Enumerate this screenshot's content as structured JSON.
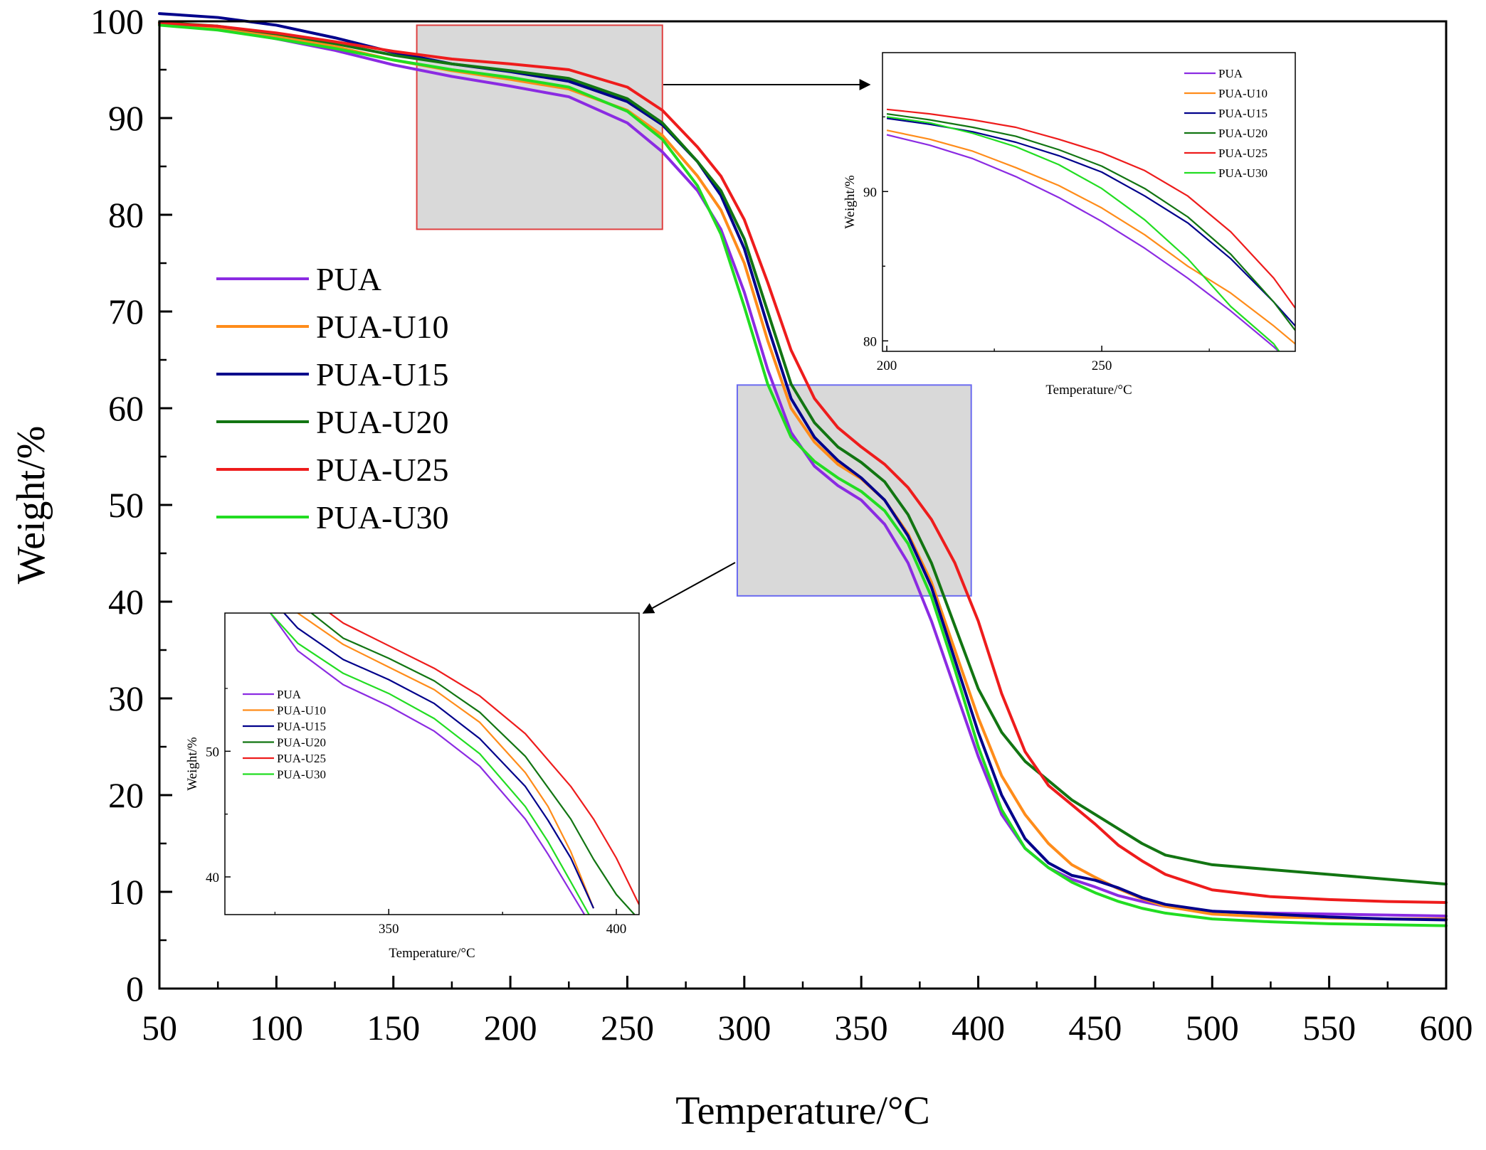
{
  "chart_data": [
    {
      "id": "main",
      "type": "line",
      "title": "",
      "xlabel": "Temperature/°C",
      "ylabel": "Weight/%",
      "xlim": [
        50,
        600
      ],
      "ylim": [
        0,
        100
      ],
      "xticks": [
        50,
        100,
        150,
        200,
        250,
        300,
        350,
        400,
        450,
        500,
        550,
        600
      ],
      "yticks": [
        0,
        10,
        20,
        30,
        40,
        50,
        60,
        70,
        80,
        90,
        100
      ],
      "legend_position": "left-center",
      "highlight_boxes": [
        {
          "x": [
            160,
            265
          ],
          "y": [
            78.5,
            99.6
          ],
          "color": "#e04040"
        },
        {
          "x": [
            297,
            397
          ],
          "y": [
            40.6,
            62.4
          ],
          "color": "#6a6af0"
        }
      ],
      "series": [
        {
          "name": "PUA",
          "color": "#8b2be2",
          "x": [
            50,
            75,
            100,
            125,
            150,
            175,
            200,
            225,
            250,
            265,
            280,
            290,
            300,
            310,
            320,
            330,
            340,
            350,
            360,
            370,
            380,
            390,
            400,
            410,
            420,
            430,
            440,
            450,
            460,
            470,
            480,
            500,
            525,
            550,
            575,
            600
          ],
          "y": [
            99.7,
            99.2,
            98.2,
            97.0,
            95.5,
            94.3,
            93.3,
            92.2,
            89.5,
            86.5,
            82.5,
            78.5,
            72.0,
            64.0,
            57.5,
            54.0,
            52.0,
            50.5,
            48.0,
            44.0,
            38.0,
            31.0,
            24.0,
            18.0,
            14.5,
            12.5,
            11.3,
            10.5,
            9.6,
            9.0,
            8.5,
            8.0,
            7.8,
            7.7,
            7.6,
            7.5
          ]
        },
        {
          "name": "PUA-U10",
          "color": "#ff8c1a",
          "x": [
            50,
            75,
            100,
            125,
            150,
            175,
            200,
            225,
            250,
            265,
            280,
            290,
            300,
            310,
            320,
            330,
            340,
            350,
            360,
            370,
            380,
            390,
            400,
            410,
            420,
            430,
            440,
            450,
            460,
            470,
            480,
            500,
            525,
            550,
            575,
            600
          ],
          "y": [
            99.8,
            99.4,
            98.5,
            97.4,
            96.0,
            94.9,
            94.0,
            93.0,
            90.8,
            88.2,
            84.0,
            80.5,
            75.0,
            67.0,
            60.0,
            56.5,
            54.2,
            52.7,
            50.5,
            47.0,
            42.0,
            35.0,
            28.0,
            22.0,
            18.0,
            15.0,
            12.8,
            11.5,
            10.3,
            9.3,
            8.5,
            7.7,
            7.4,
            7.3,
            7.2,
            7.2
          ]
        },
        {
          "name": "PUA-U15",
          "color": "#00008b",
          "x": [
            50,
            75,
            100,
            125,
            150,
            175,
            200,
            225,
            250,
            265,
            280,
            290,
            300,
            310,
            320,
            330,
            340,
            350,
            360,
            370,
            380,
            390,
            400,
            410,
            420,
            430,
            440,
            450,
            460,
            470,
            480,
            500,
            525,
            550,
            575,
            600
          ],
          "y": [
            100.8,
            100.4,
            99.6,
            98.3,
            96.8,
            95.6,
            94.8,
            93.8,
            91.7,
            89.3,
            85.5,
            82.0,
            76.5,
            68.5,
            61.0,
            57.0,
            54.6,
            52.8,
            50.5,
            46.8,
            41.5,
            34.0,
            26.5,
            20.0,
            15.5,
            13.0,
            11.7,
            11.2,
            10.4,
            9.4,
            8.7,
            8.0,
            7.7,
            7.4,
            7.2,
            7.1
          ]
        },
        {
          "name": "PUA-U20",
          "color": "#127512",
          "x": [
            50,
            75,
            100,
            125,
            150,
            175,
            200,
            225,
            250,
            265,
            280,
            290,
            300,
            310,
            320,
            330,
            340,
            350,
            360,
            370,
            380,
            390,
            400,
            410,
            420,
            430,
            440,
            450,
            460,
            470,
            480,
            500,
            525,
            550,
            575,
            600
          ],
          "y": [
            99.9,
            99.5,
            98.7,
            97.7,
            96.5,
            95.6,
            94.9,
            94.1,
            92.0,
            89.5,
            85.5,
            82.5,
            77.5,
            70.0,
            62.5,
            58.5,
            56.0,
            54.4,
            52.4,
            49.0,
            44.0,
            37.5,
            31.0,
            26.5,
            23.5,
            21.5,
            19.5,
            18.0,
            16.5,
            15.0,
            13.8,
            12.8,
            12.3,
            11.8,
            11.3,
            10.8
          ]
        },
        {
          "name": "PUA-U25",
          "color": "#ee1c1c",
          "x": [
            50,
            75,
            100,
            125,
            150,
            175,
            200,
            225,
            250,
            265,
            280,
            290,
            300,
            310,
            320,
            330,
            340,
            350,
            360,
            370,
            380,
            390,
            400,
            410,
            420,
            430,
            440,
            450,
            460,
            470,
            480,
            500,
            525,
            550,
            575,
            600
          ],
          "y": [
            99.8,
            99.5,
            98.8,
            97.9,
            96.9,
            96.1,
            95.6,
            95.0,
            93.2,
            90.8,
            87.0,
            84.0,
            79.5,
            73.0,
            66.0,
            61.0,
            58.0,
            56.0,
            54.2,
            51.8,
            48.5,
            44.0,
            38.0,
            30.5,
            24.5,
            21.0,
            19.0,
            17.0,
            14.8,
            13.2,
            11.8,
            10.2,
            9.5,
            9.2,
            9.0,
            8.9
          ]
        },
        {
          "name": "PUA-U30",
          "color": "#22dd22",
          "x": [
            50,
            75,
            100,
            125,
            150,
            175,
            200,
            225,
            250,
            265,
            280,
            290,
            300,
            310,
            320,
            330,
            340,
            350,
            360,
            370,
            380,
            390,
            400,
            410,
            420,
            430,
            440,
            450,
            460,
            470,
            480,
            500,
            525,
            550,
            575,
            600
          ],
          "y": [
            99.6,
            99.1,
            98.2,
            97.2,
            96.0,
            95.0,
            94.2,
            93.2,
            90.7,
            87.8,
            83.0,
            78.0,
            70.5,
            62.5,
            57.0,
            54.5,
            52.8,
            51.4,
            49.4,
            46.0,
            40.5,
            33.0,
            25.0,
            18.5,
            14.5,
            12.5,
            11.0,
            9.9,
            9.0,
            8.3,
            7.8,
            7.2,
            6.9,
            6.7,
            6.6,
            6.5
          ]
        }
      ]
    },
    {
      "id": "inset_top",
      "type": "line",
      "title": "",
      "xlabel": "Temperature/°C",
      "ylabel": "Weight/%",
      "xlim": [
        199,
        295
      ],
      "ylim": [
        79.3,
        99.3
      ],
      "xticks": [
        200,
        250
      ],
      "yticks": [
        80,
        90
      ],
      "legend_position": "top-right",
      "series": [
        {
          "name": "PUA",
          "color": "#8b2be2",
          "x": [
            200,
            210,
            220,
            230,
            240,
            250,
            260,
            270,
            280,
            290,
            293
          ],
          "y": [
            93.8,
            93.1,
            92.2,
            91.0,
            89.6,
            88.0,
            86.2,
            84.2,
            82.0,
            79.6,
            78.8
          ]
        },
        {
          "name": "PUA-U10",
          "color": "#ff8c1a",
          "x": [
            200,
            210,
            220,
            230,
            240,
            250,
            260,
            270,
            280,
            290,
            295
          ],
          "y": [
            94.1,
            93.5,
            92.7,
            91.6,
            90.4,
            88.9,
            87.1,
            85.0,
            83.2,
            81.0,
            79.8
          ]
        },
        {
          "name": "PUA-U15",
          "color": "#00008b",
          "x": [
            200,
            210,
            220,
            230,
            240,
            250,
            260,
            270,
            280,
            290,
            295
          ],
          "y": [
            94.9,
            94.5,
            94.0,
            93.3,
            92.4,
            91.3,
            89.7,
            87.9,
            85.5,
            82.6,
            81.0
          ]
        },
        {
          "name": "PUA-U20",
          "color": "#127512",
          "x": [
            200,
            210,
            220,
            230,
            240,
            250,
            260,
            270,
            280,
            290,
            295
          ],
          "y": [
            95.2,
            94.8,
            94.3,
            93.7,
            92.8,
            91.7,
            90.2,
            88.3,
            85.8,
            82.6,
            80.7
          ]
        },
        {
          "name": "PUA-U25",
          "color": "#ee1c1c",
          "x": [
            200,
            210,
            220,
            230,
            240,
            250,
            260,
            270,
            280,
            290,
            295
          ],
          "y": [
            95.5,
            95.2,
            94.8,
            94.3,
            93.5,
            92.6,
            91.4,
            89.7,
            87.3,
            84.2,
            82.2
          ]
        },
        {
          "name": "PUA-U30",
          "color": "#22dd22",
          "x": [
            200,
            210,
            220,
            230,
            240,
            250,
            260,
            270,
            280,
            290,
            292
          ],
          "y": [
            95.0,
            94.6,
            93.9,
            93.0,
            91.8,
            90.2,
            88.1,
            85.5,
            82.3,
            79.8,
            79.0
          ]
        }
      ]
    },
    {
      "id": "inset_bottom",
      "type": "line",
      "title": "",
      "xlabel": "Temperature/°C",
      "ylabel": "Weight/%",
      "xlim": [
        314,
        405
      ],
      "ylim": [
        37,
        61
      ],
      "xticks": [
        350,
        400
      ],
      "yticks": [
        40,
        50
      ],
      "legend_position": "left-center",
      "series": [
        {
          "name": "PUA",
          "color": "#8b2be2",
          "x": [
            324,
            330,
            340,
            350,
            360,
            370,
            380,
            385,
            390,
            393
          ],
          "y": [
            61.0,
            58.0,
            55.3,
            53.6,
            51.6,
            48.8,
            44.6,
            41.8,
            38.8,
            37.0
          ]
        },
        {
          "name": "PUA-U10",
          "color": "#ff8c1a",
          "x": [
            330,
            340,
            350,
            360,
            370,
            380,
            385,
            390,
            395
          ],
          "y": [
            61.0,
            58.5,
            56.7,
            54.9,
            52.3,
            48.3,
            45.6,
            42.0,
            37.5
          ]
        },
        {
          "name": "PUA-U15",
          "color": "#00008b",
          "x": [
            327,
            330,
            340,
            350,
            360,
            370,
            380,
            385,
            390,
            395
          ],
          "y": [
            61.0,
            59.8,
            57.3,
            55.7,
            53.8,
            51.0,
            47.2,
            44.5,
            41.5,
            37.5
          ]
        },
        {
          "name": "PUA-U20",
          "color": "#127512",
          "x": [
            333,
            340,
            350,
            360,
            370,
            380,
            390,
            395,
            400,
            404
          ],
          "y": [
            61.0,
            59.0,
            57.4,
            55.6,
            53.1,
            49.6,
            44.6,
            41.4,
            38.6,
            37.0
          ]
        },
        {
          "name": "PUA-U25",
          "color": "#ee1c1c",
          "x": [
            337,
            340,
            350,
            360,
            370,
            380,
            390,
            395,
            400,
            405
          ],
          "y": [
            61.0,
            60.2,
            58.4,
            56.6,
            54.4,
            51.4,
            47.2,
            44.6,
            41.5,
            37.8
          ]
        },
        {
          "name": "PUA-U30",
          "color": "#22dd22",
          "x": [
            324,
            330,
            340,
            350,
            360,
            370,
            380,
            385,
            390,
            394
          ],
          "y": [
            61.0,
            58.6,
            56.2,
            54.6,
            52.6,
            49.8,
            45.6,
            42.8,
            39.6,
            37.0
          ]
        }
      ]
    }
  ]
}
